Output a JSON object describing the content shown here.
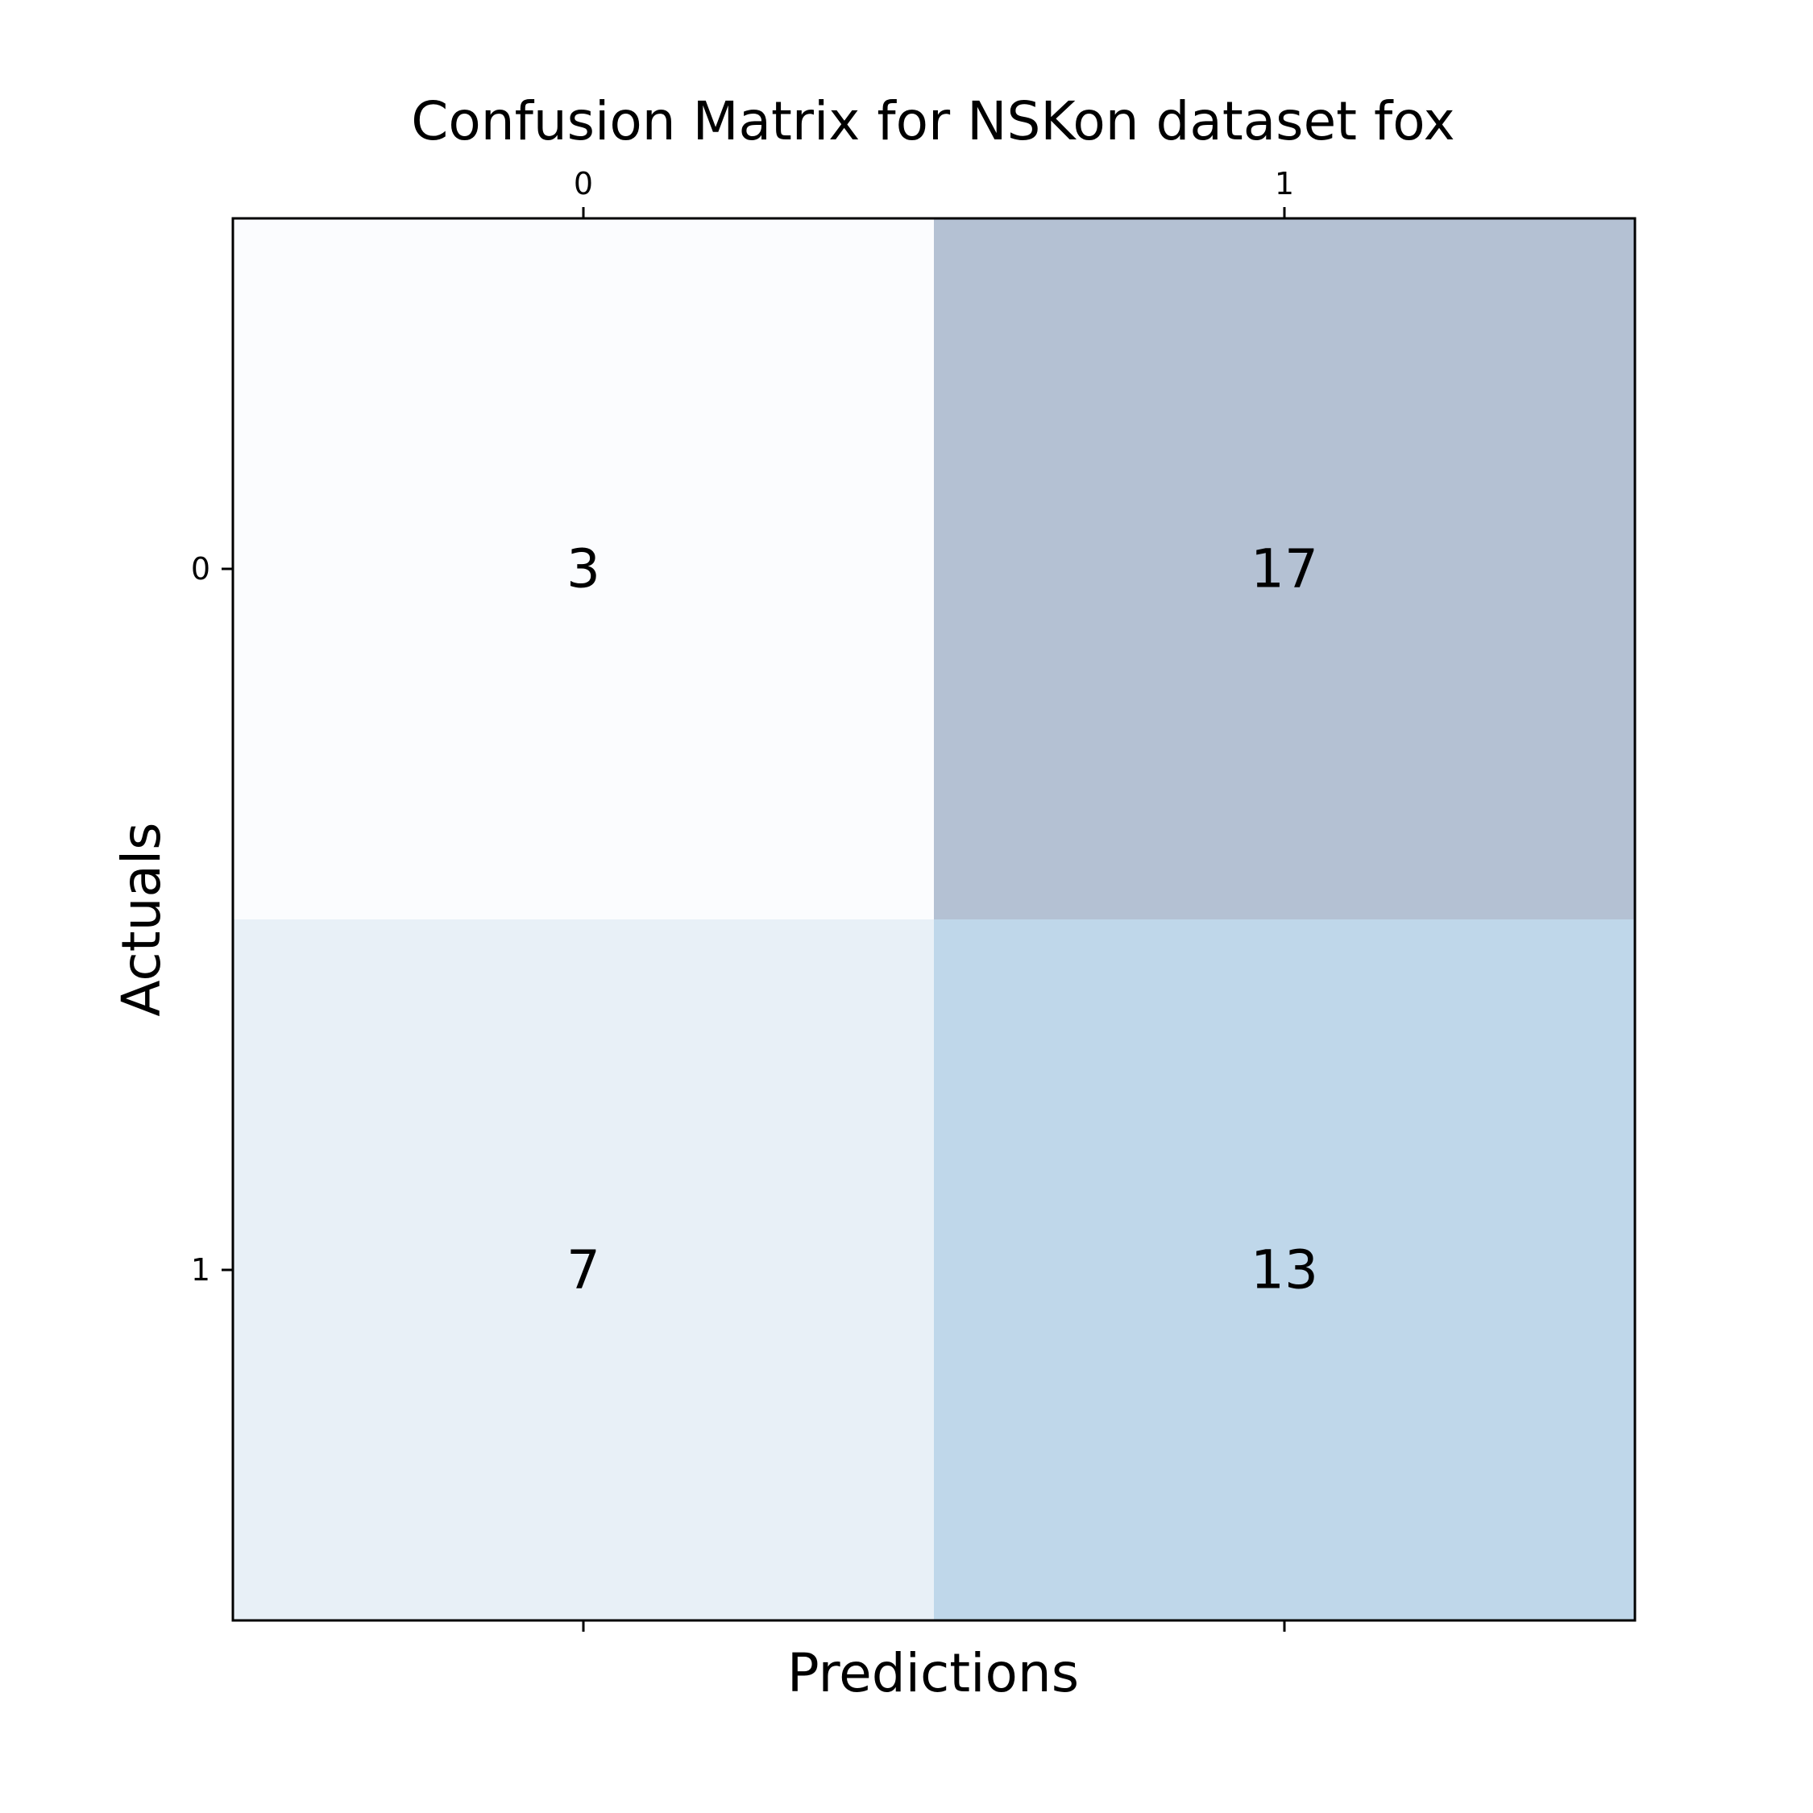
{
  "chart_data": {
    "type": "heatmap",
    "title": "Confusion Matrix for NSKon dataset fox",
    "xlabel": "Predictions",
    "ylabel": "Actuals",
    "x_categories": [
      "0",
      "1"
    ],
    "y_categories": [
      "0",
      "1"
    ],
    "values": [
      [
        3,
        17
      ],
      [
        7,
        13
      ]
    ],
    "x_tick_position": "top",
    "colormap": "Blues",
    "alpha": 0.3,
    "vmin": 3,
    "vmax": 17,
    "grid": false
  },
  "colors": {
    "cell_0_0": "#fbfcfe",
    "cell_0_1": "#b4c1d3",
    "cell_1_0": "#e8f0f7",
    "cell_1_1": "#bfd7ea",
    "frame": "#000000"
  }
}
